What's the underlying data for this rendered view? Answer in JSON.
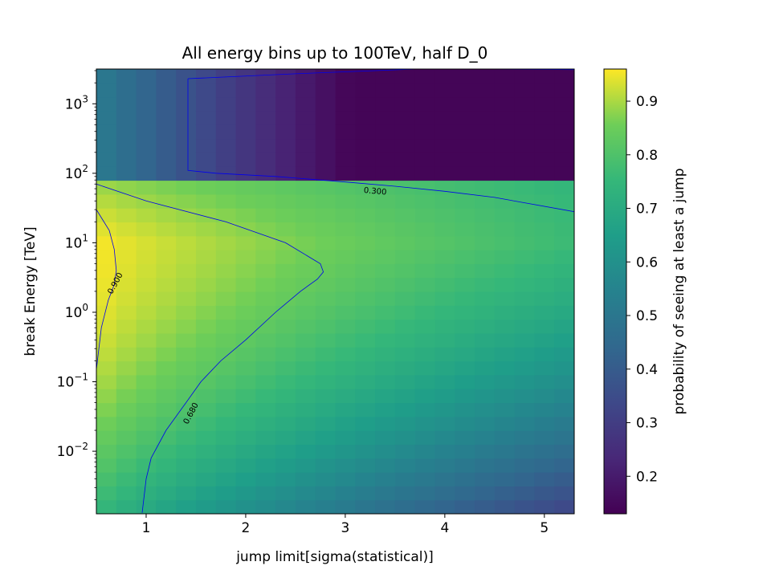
{
  "chart_data": {
    "type": "heatmap",
    "title": "All energy bins up to 100TeV, half D_0",
    "xlabel": "jump limit[sigma(statistical)]",
    "ylabel": "break Energy [TeV]",
    "colorbar_label": "probability of seeing at least a jump",
    "colormap": "viridis",
    "xlim": [
      0.5,
      5.3
    ],
    "ylim_log10": [
      -2.9,
      3.5
    ],
    "y_scale": "log",
    "x_ticks": [
      "1",
      "2",
      "3",
      "4",
      "5"
    ],
    "y_ticks": [
      {
        "base": "10",
        "exp": "−2"
      },
      {
        "base": "10",
        "exp": "−1"
      },
      {
        "base": "10",
        "exp": "0"
      },
      {
        "base": "10",
        "exp": "1"
      },
      {
        "base": "10",
        "exp": "2"
      },
      {
        "base": "10",
        "exp": "3"
      }
    ],
    "colorbar_range": [
      0.13,
      0.96
    ],
    "colorbar_ticks": [
      "0.2",
      "0.3",
      "0.4",
      "0.5",
      "0.6",
      "0.7",
      "0.8",
      "0.9"
    ],
    "x_bins": [
      0.5,
      0.7,
      0.9,
      1.1,
      1.3,
      1.5,
      1.7,
      1.9,
      2.1,
      2.3,
      2.5,
      2.7,
      2.9,
      3.1,
      3.3,
      3.5,
      3.7,
      3.9,
      4.1,
      4.3,
      4.5,
      4.7,
      4.9,
      5.1,
      5.3
    ],
    "contour_levels": [
      "0.300",
      "0.680",
      "0.900"
    ],
    "contours": [
      {
        "label": "0.900",
        "points": [
          [
            0.5,
            0.15
          ],
          [
            0.55,
            0.6
          ],
          [
            0.62,
            1.5
          ],
          [
            0.68,
            2.5
          ],
          [
            0.7,
            4.0
          ],
          [
            0.68,
            8.0
          ],
          [
            0.63,
            15
          ],
          [
            0.5,
            30
          ]
        ]
      },
      {
        "label": "0.680",
        "points": [
          [
            0.96,
            0.0013
          ],
          [
            1.0,
            0.004
          ],
          [
            1.05,
            0.008
          ],
          [
            1.2,
            0.02
          ],
          [
            1.4,
            0.05
          ],
          [
            1.55,
            0.1
          ],
          [
            1.75,
            0.2
          ],
          [
            2.0,
            0.4
          ],
          [
            2.3,
            1.0
          ],
          [
            2.55,
            2.0
          ],
          [
            2.72,
            3.0
          ],
          [
            2.78,
            3.8
          ],
          [
            2.75,
            5.0
          ],
          [
            2.4,
            10
          ],
          [
            1.8,
            20
          ],
          [
            1.0,
            40
          ],
          [
            0.5,
            70
          ]
        ]
      },
      {
        "label": "0.300",
        "points": [
          [
            1.42,
            2300
          ],
          [
            1.42,
            1400
          ],
          [
            1.42,
            900
          ],
          [
            1.42,
            600
          ],
          [
            1.42,
            110
          ],
          [
            1.7,
            100
          ],
          [
            2.3,
            90
          ],
          [
            3.0,
            75
          ],
          [
            3.5,
            65
          ],
          [
            4.0,
            55
          ],
          [
            4.5,
            45
          ],
          [
            5.3,
            28
          ],
          [
            5.3,
            3100
          ],
          [
            3.8,
            3200
          ],
          [
            2.5,
            2700
          ],
          [
            1.42,
            2300
          ]
        ]
      }
    ]
  }
}
